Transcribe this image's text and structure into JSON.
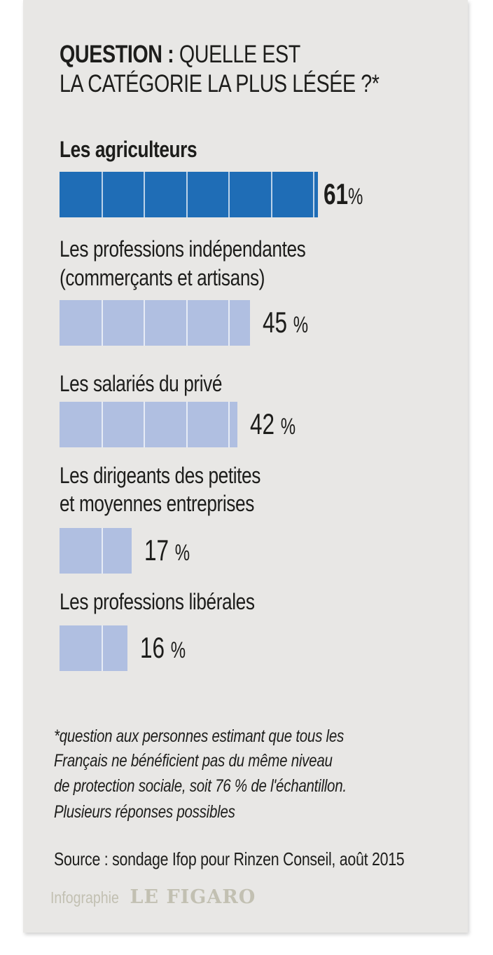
{
  "title": {
    "bold": "QUESTION :",
    "line1_rest": " QUELLE EST",
    "line2": "LA CATÉGORIE LA PLUS LÉSÉE ?*"
  },
  "chart_data": {
    "type": "bar",
    "orientation": "horizontal",
    "unit": "%",
    "categories": [
      [
        "Les agriculteurs"
      ],
      [
        "Les professions indépendantes",
        "(commerçants et artisans)"
      ],
      [
        "Les salariés du privé"
      ],
      [
        "Les dirigeants des petites",
        "et moyennes entreprises"
      ],
      [
        "Les professions libérales"
      ]
    ],
    "values": [
      61,
      45,
      42,
      17,
      16
    ],
    "value_labels": [
      "61",
      "45",
      "42",
      "17",
      "16"
    ],
    "percent_sign": "%",
    "colors": {
      "highlight": "#1f6db6",
      "default": "#b0bfe1"
    },
    "highlight_index": 0,
    "grid_step": 10
  },
  "footnote": [
    "*question aux personnes estimant que tous les",
    "Français ne bénéficient pas du même niveau",
    "de protection sociale, soit 76 % de l'échantillon.",
    "Plusieurs réponses possibles"
  ],
  "source": "Source : sondage Ifop pour Rinzen Conseil, août 2015",
  "credit": {
    "prefix": "Infographie",
    "brand": "LE FIGARO"
  }
}
